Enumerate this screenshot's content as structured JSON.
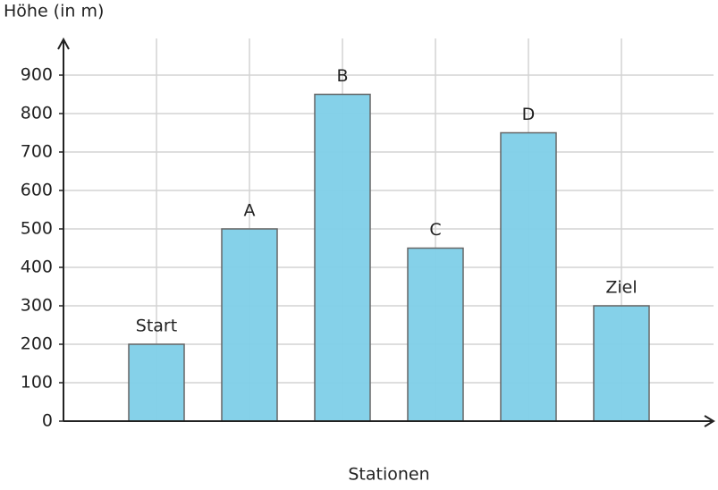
{
  "chart_data": {
    "type": "bar",
    "y_label": "Höhe (in m)",
    "x_label": "Stationen",
    "categories": [
      "Start",
      "A",
      "B",
      "C",
      "D",
      "Ziel"
    ],
    "values": [
      200,
      500,
      850,
      450,
      750,
      300
    ],
    "color": "#7ecfe8",
    "ylim": [
      0,
      1000
    ],
    "yticks": [
      0,
      100,
      200,
      300,
      400,
      500,
      600,
      700,
      800,
      900
    ],
    "grid": true
  }
}
